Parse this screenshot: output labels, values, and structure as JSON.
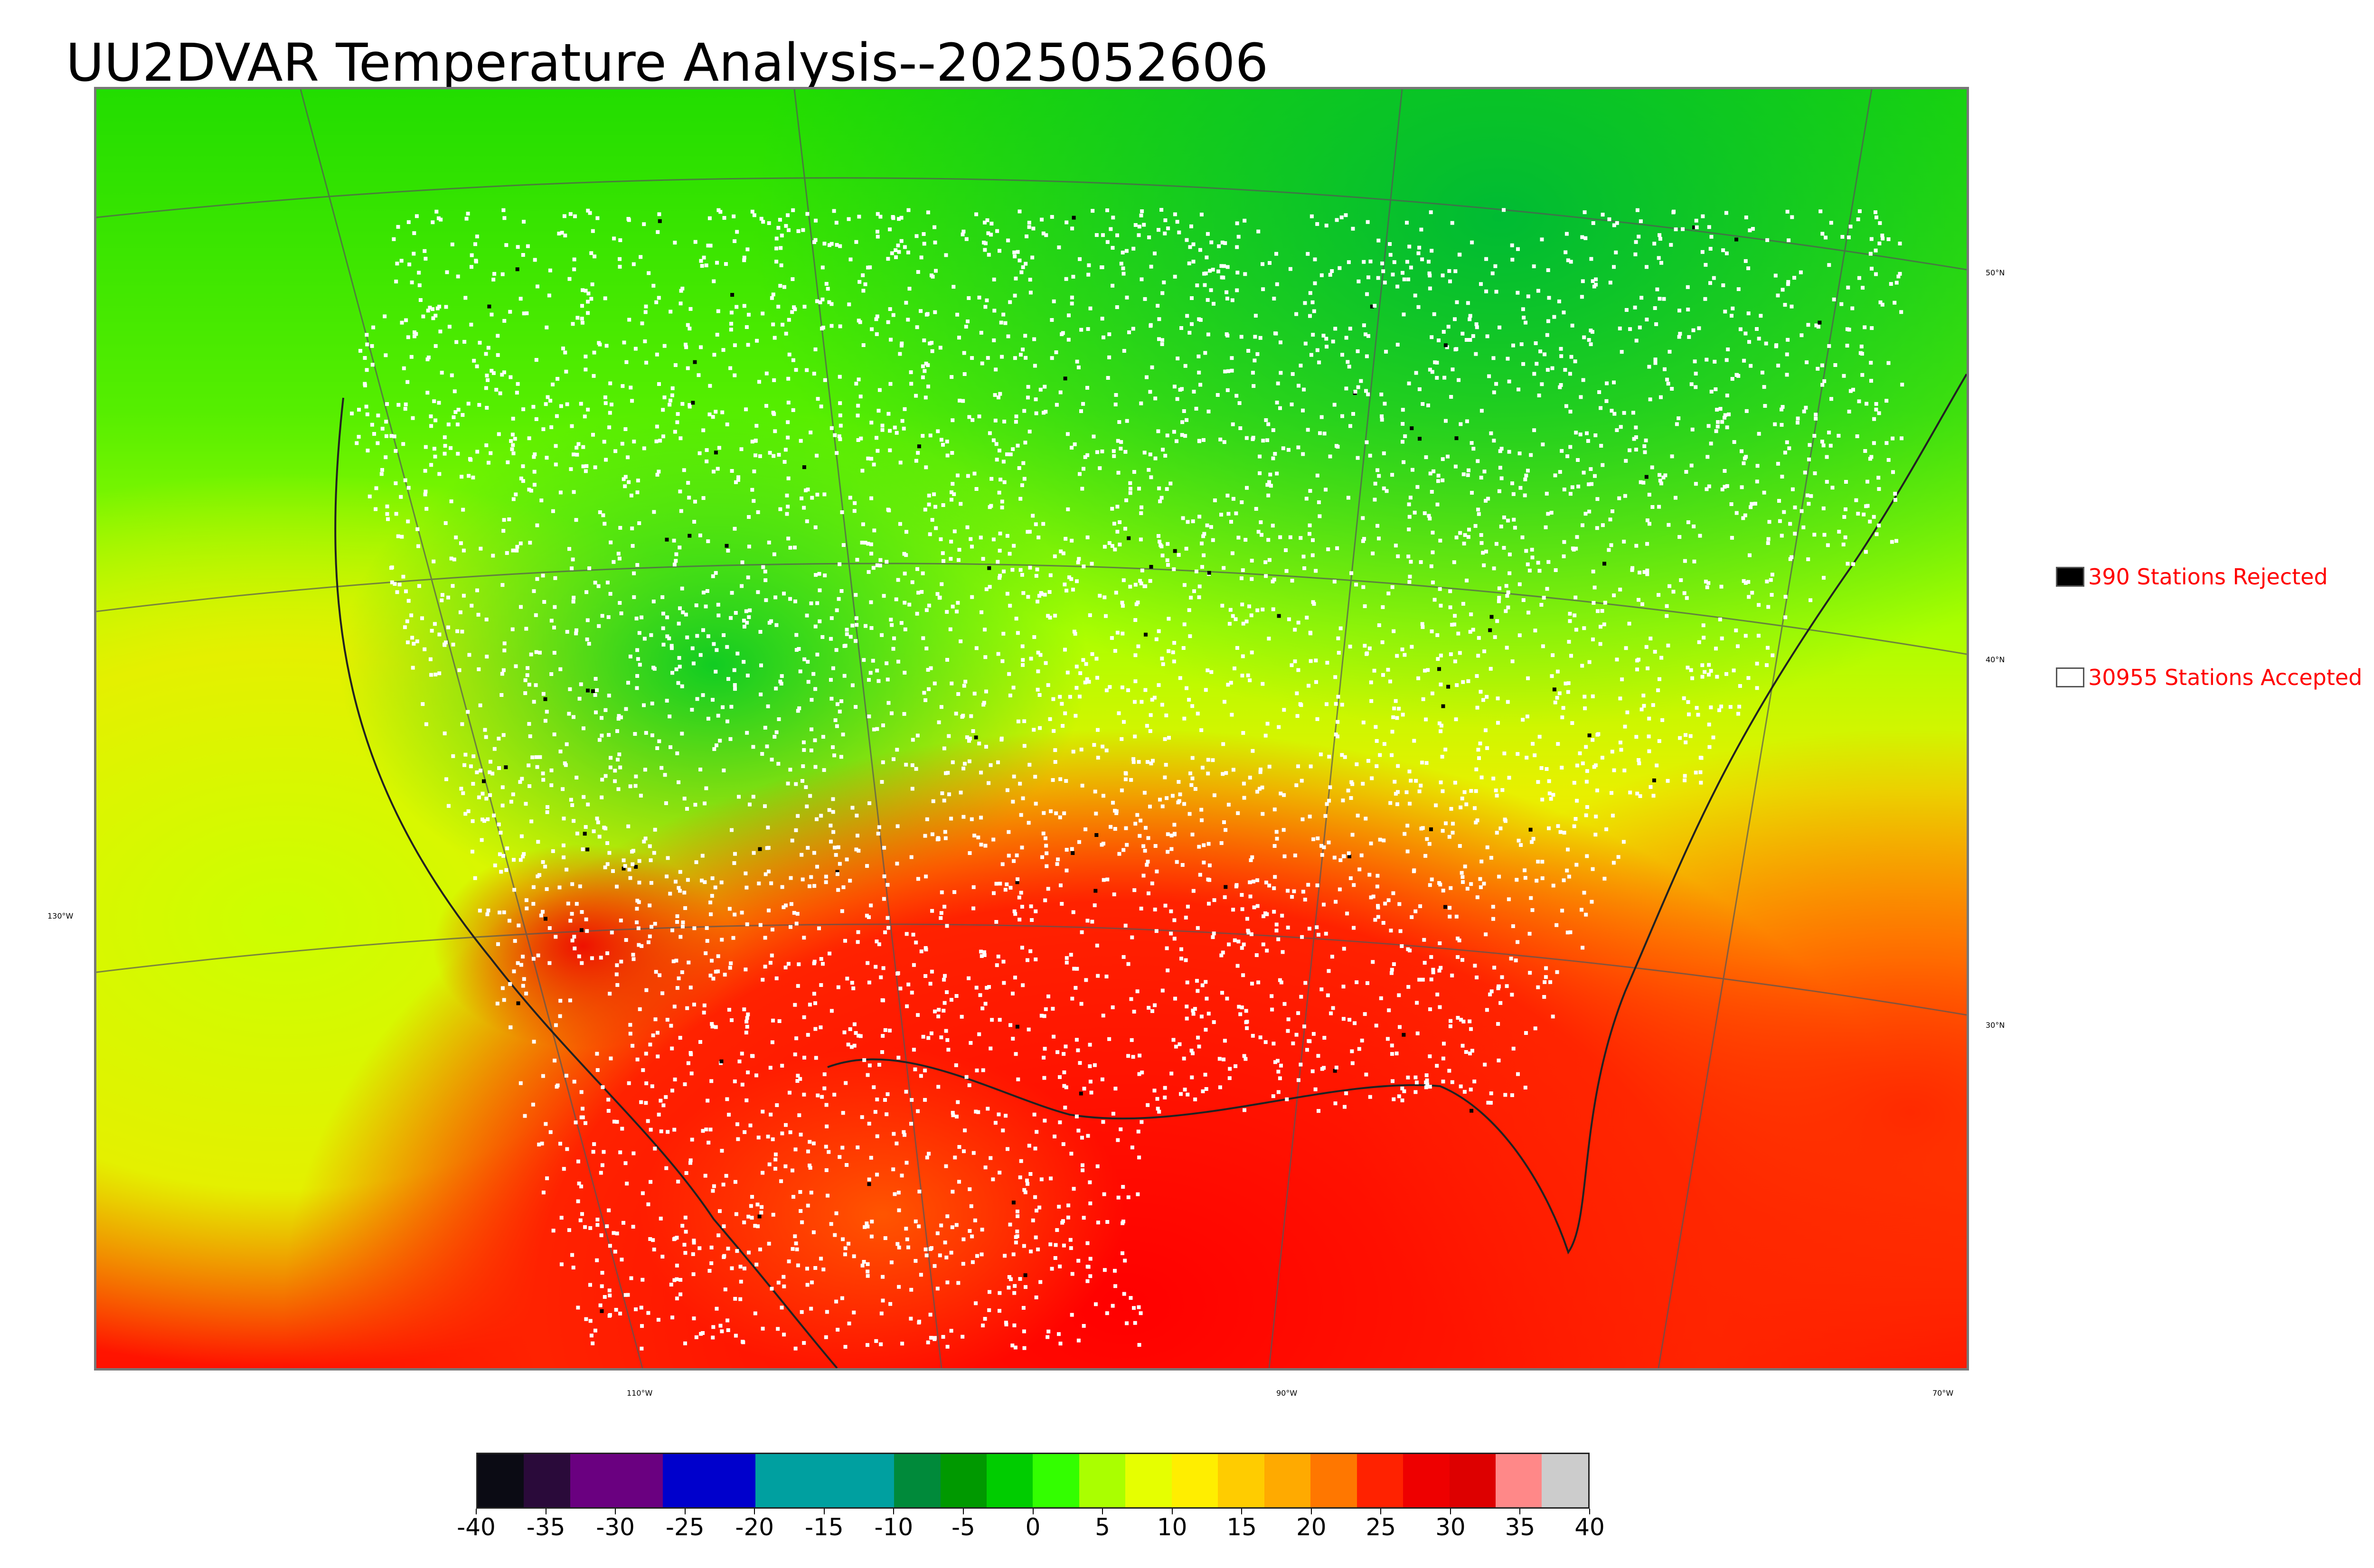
{
  "title": "UU2DVAR Temperature Analysis--2025052606",
  "legend": {
    "rejected": {
      "label": "390 Stations Rejected",
      "swatch_color": "#000000"
    },
    "accepted": {
      "label": "30955 Stations Accepted",
      "swatch_color": "#ffffff"
    }
  },
  "lat_labels": [
    "50°N",
    "40°N",
    "30°N"
  ],
  "lon_labels": [
    "130°W",
    "110°W",
    "90°W",
    "70°W"
  ],
  "colorbar": {
    "tick_labels": [
      "-40",
      "-35",
      "-30",
      "-25",
      "-20",
      "-15",
      "-10",
      "-5",
      "0",
      "5",
      "10",
      "15",
      "20",
      "25",
      "30",
      "35",
      "40"
    ],
    "colors": [
      "#0b0b14",
      "#2a0a3a",
      "#6a0080",
      "#6a0080",
      "#0000cc",
      "#0000cc",
      "#00a0a0",
      "#00a0a0",
      "#00a0a0",
      "#008a3a",
      "#009900",
      "#00cc00",
      "#33ff00",
      "#aaff00",
      "#e6ff00",
      "#ffee00",
      "#ffcc00",
      "#ffaa00",
      "#ff7700",
      "#ff2200",
      "#ee0000",
      "#dd0000",
      "#ff8888",
      "#cccccc"
    ]
  },
  "colors": {
    "accent_text": "#ff0000",
    "land_cold": "#00cc22",
    "land_mild": "#ccff00",
    "land_warm": "#ffaa00",
    "sea_hot": "#ff1a00"
  }
}
